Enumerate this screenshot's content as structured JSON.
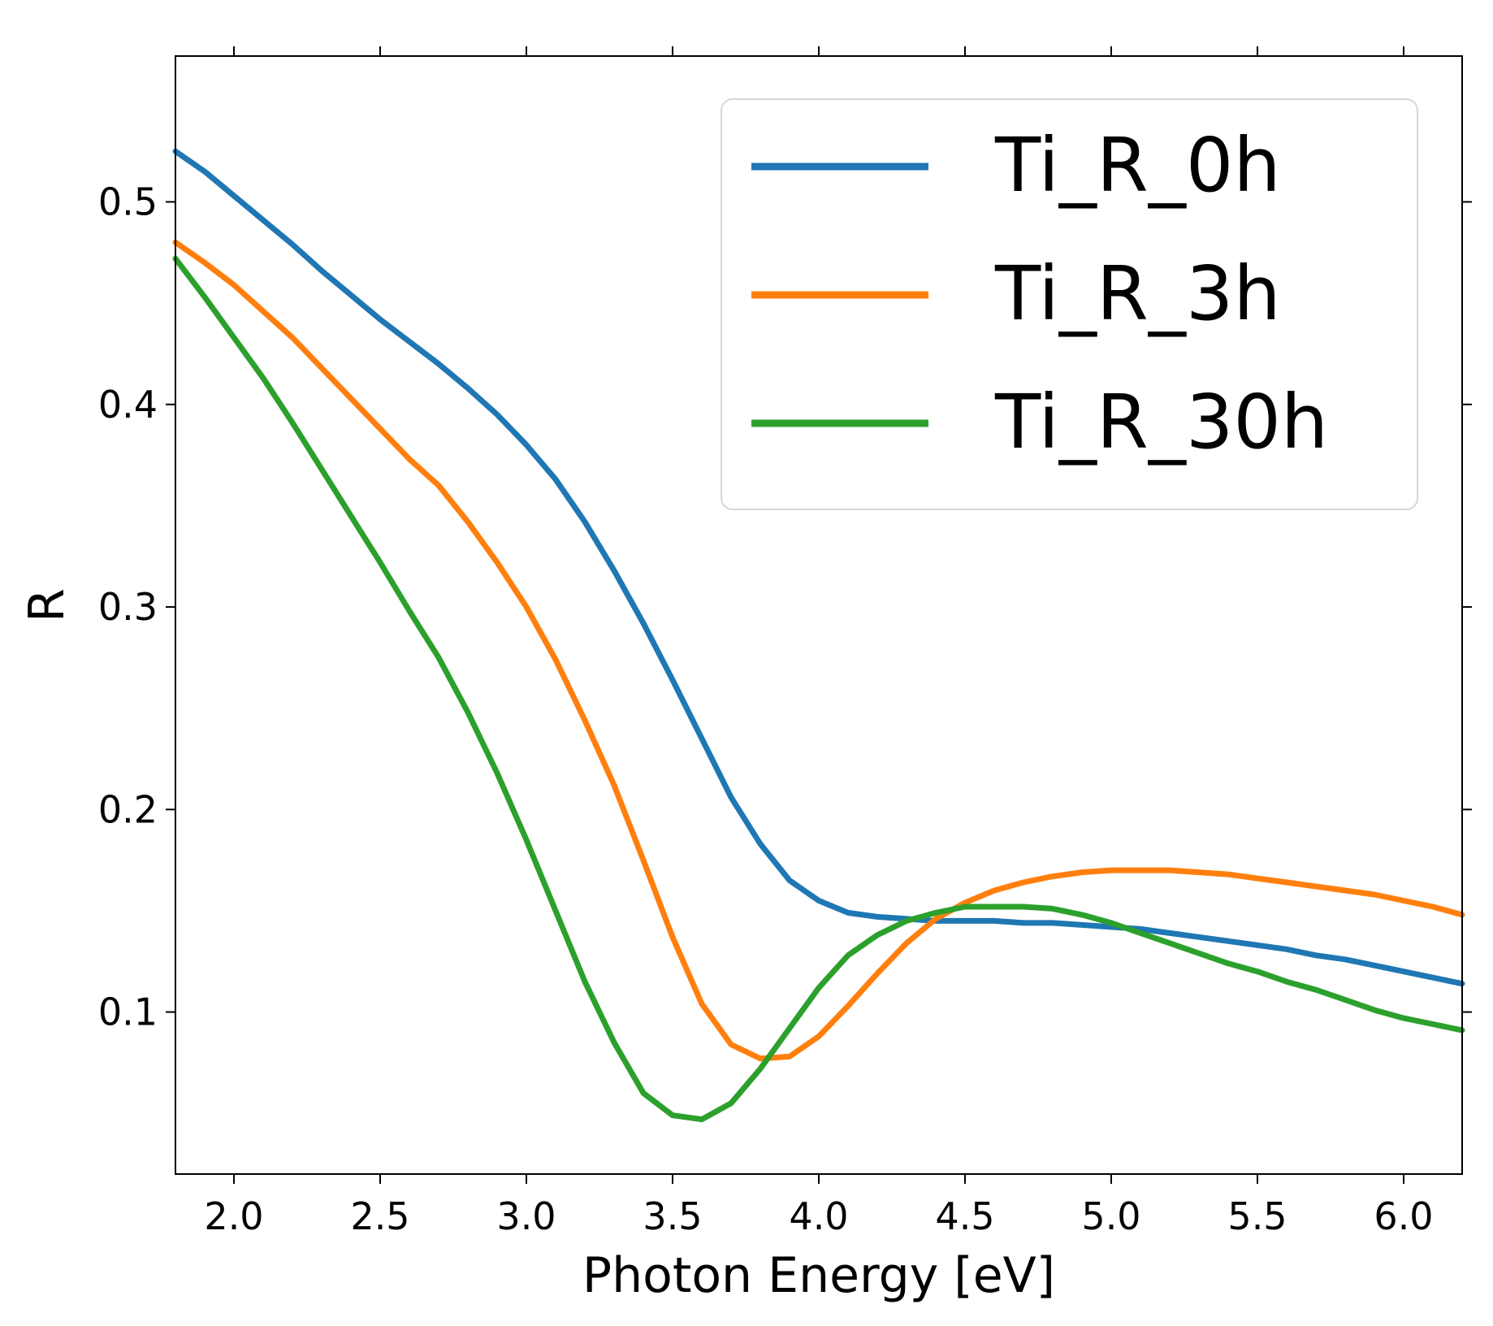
{
  "chart_data": {
    "type": "line",
    "title": "",
    "xlabel": "Photon Energy [eV]",
    "ylabel": "R",
    "xlim": [
      1.8,
      6.2
    ],
    "ylim": [
      0.02,
      0.572
    ],
    "xticks": [
      2.0,
      2.5,
      3.0,
      3.5,
      4.0,
      4.5,
      5.0,
      5.5,
      6.0
    ],
    "xtick_labels": [
      "2.0",
      "2.5",
      "3.0",
      "3.5",
      "4.0",
      "4.5",
      "5.0",
      "5.5",
      "6.0"
    ],
    "yticks": [
      0.1,
      0.2,
      0.3,
      0.4,
      0.5
    ],
    "ytick_labels": [
      "0.1",
      "0.2",
      "0.3",
      "0.4",
      "0.5"
    ],
    "grid": false,
    "legend_position": "top-right",
    "series": [
      {
        "name": "Ti_R_0h",
        "color": "#1f77b4",
        "x": [
          1.8,
          1.9,
          2.0,
          2.1,
          2.2,
          2.3,
          2.4,
          2.5,
          2.6,
          2.7,
          2.8,
          2.9,
          3.0,
          3.1,
          3.2,
          3.3,
          3.4,
          3.5,
          3.6,
          3.7,
          3.8,
          3.9,
          4.0,
          4.1,
          4.2,
          4.3,
          4.4,
          4.5,
          4.6,
          4.7,
          4.8,
          4.9,
          5.0,
          5.1,
          5.2,
          5.3,
          5.4,
          5.5,
          5.6,
          5.7,
          5.8,
          5.9,
          6.0,
          6.1,
          6.2
        ],
        "y": [
          0.525,
          0.515,
          0.503,
          0.491,
          0.479,
          0.466,
          0.454,
          0.442,
          0.431,
          0.42,
          0.408,
          0.395,
          0.38,
          0.363,
          0.342,
          0.318,
          0.292,
          0.264,
          0.235,
          0.206,
          0.183,
          0.165,
          0.155,
          0.149,
          0.147,
          0.146,
          0.145,
          0.145,
          0.145,
          0.144,
          0.144,
          0.143,
          0.142,
          0.141,
          0.139,
          0.137,
          0.135,
          0.133,
          0.131,
          0.128,
          0.126,
          0.123,
          0.12,
          0.117,
          0.114
        ]
      },
      {
        "name": "Ti_R_3h",
        "color": "#ff7f0e",
        "x": [
          1.8,
          1.9,
          2.0,
          2.1,
          2.2,
          2.3,
          2.4,
          2.5,
          2.6,
          2.7,
          2.8,
          2.9,
          3.0,
          3.1,
          3.2,
          3.3,
          3.4,
          3.5,
          3.6,
          3.7,
          3.8,
          3.9,
          4.0,
          4.1,
          4.2,
          4.3,
          4.4,
          4.5,
          4.6,
          4.7,
          4.8,
          4.9,
          5.0,
          5.1,
          5.2,
          5.3,
          5.4,
          5.5,
          5.6,
          5.7,
          5.8,
          5.9,
          6.0,
          6.1,
          6.2
        ],
        "y": [
          0.48,
          0.47,
          0.459,
          0.446,
          0.433,
          0.418,
          0.403,
          0.388,
          0.373,
          0.36,
          0.342,
          0.322,
          0.3,
          0.274,
          0.244,
          0.212,
          0.175,
          0.137,
          0.104,
          0.084,
          0.077,
          0.078,
          0.088,
          0.103,
          0.119,
          0.134,
          0.146,
          0.154,
          0.16,
          0.164,
          0.167,
          0.169,
          0.17,
          0.17,
          0.17,
          0.169,
          0.168,
          0.166,
          0.164,
          0.162,
          0.16,
          0.158,
          0.155,
          0.152,
          0.148
        ]
      },
      {
        "name": "Ti_R_30h",
        "color": "#2ca02c",
        "x": [
          1.8,
          1.9,
          2.0,
          2.1,
          2.2,
          2.3,
          2.4,
          2.5,
          2.6,
          2.7,
          2.8,
          2.9,
          3.0,
          3.1,
          3.2,
          3.3,
          3.4,
          3.5,
          3.6,
          3.7,
          3.8,
          3.9,
          4.0,
          4.1,
          4.2,
          4.3,
          4.4,
          4.5,
          4.6,
          4.7,
          4.8,
          4.9,
          5.0,
          5.1,
          5.2,
          5.3,
          5.4,
          5.5,
          5.6,
          5.7,
          5.8,
          5.9,
          6.0,
          6.1,
          6.2
        ],
        "y": [
          0.472,
          0.453,
          0.433,
          0.413,
          0.391,
          0.368,
          0.345,
          0.322,
          0.298,
          0.275,
          0.248,
          0.218,
          0.185,
          0.15,
          0.115,
          0.085,
          0.06,
          0.049,
          0.047,
          0.055,
          0.072,
          0.092,
          0.112,
          0.128,
          0.138,
          0.145,
          0.149,
          0.152,
          0.152,
          0.152,
          0.151,
          0.148,
          0.144,
          0.139,
          0.134,
          0.129,
          0.124,
          0.12,
          0.115,
          0.111,
          0.106,
          0.101,
          0.097,
          0.094,
          0.091
        ]
      }
    ]
  }
}
